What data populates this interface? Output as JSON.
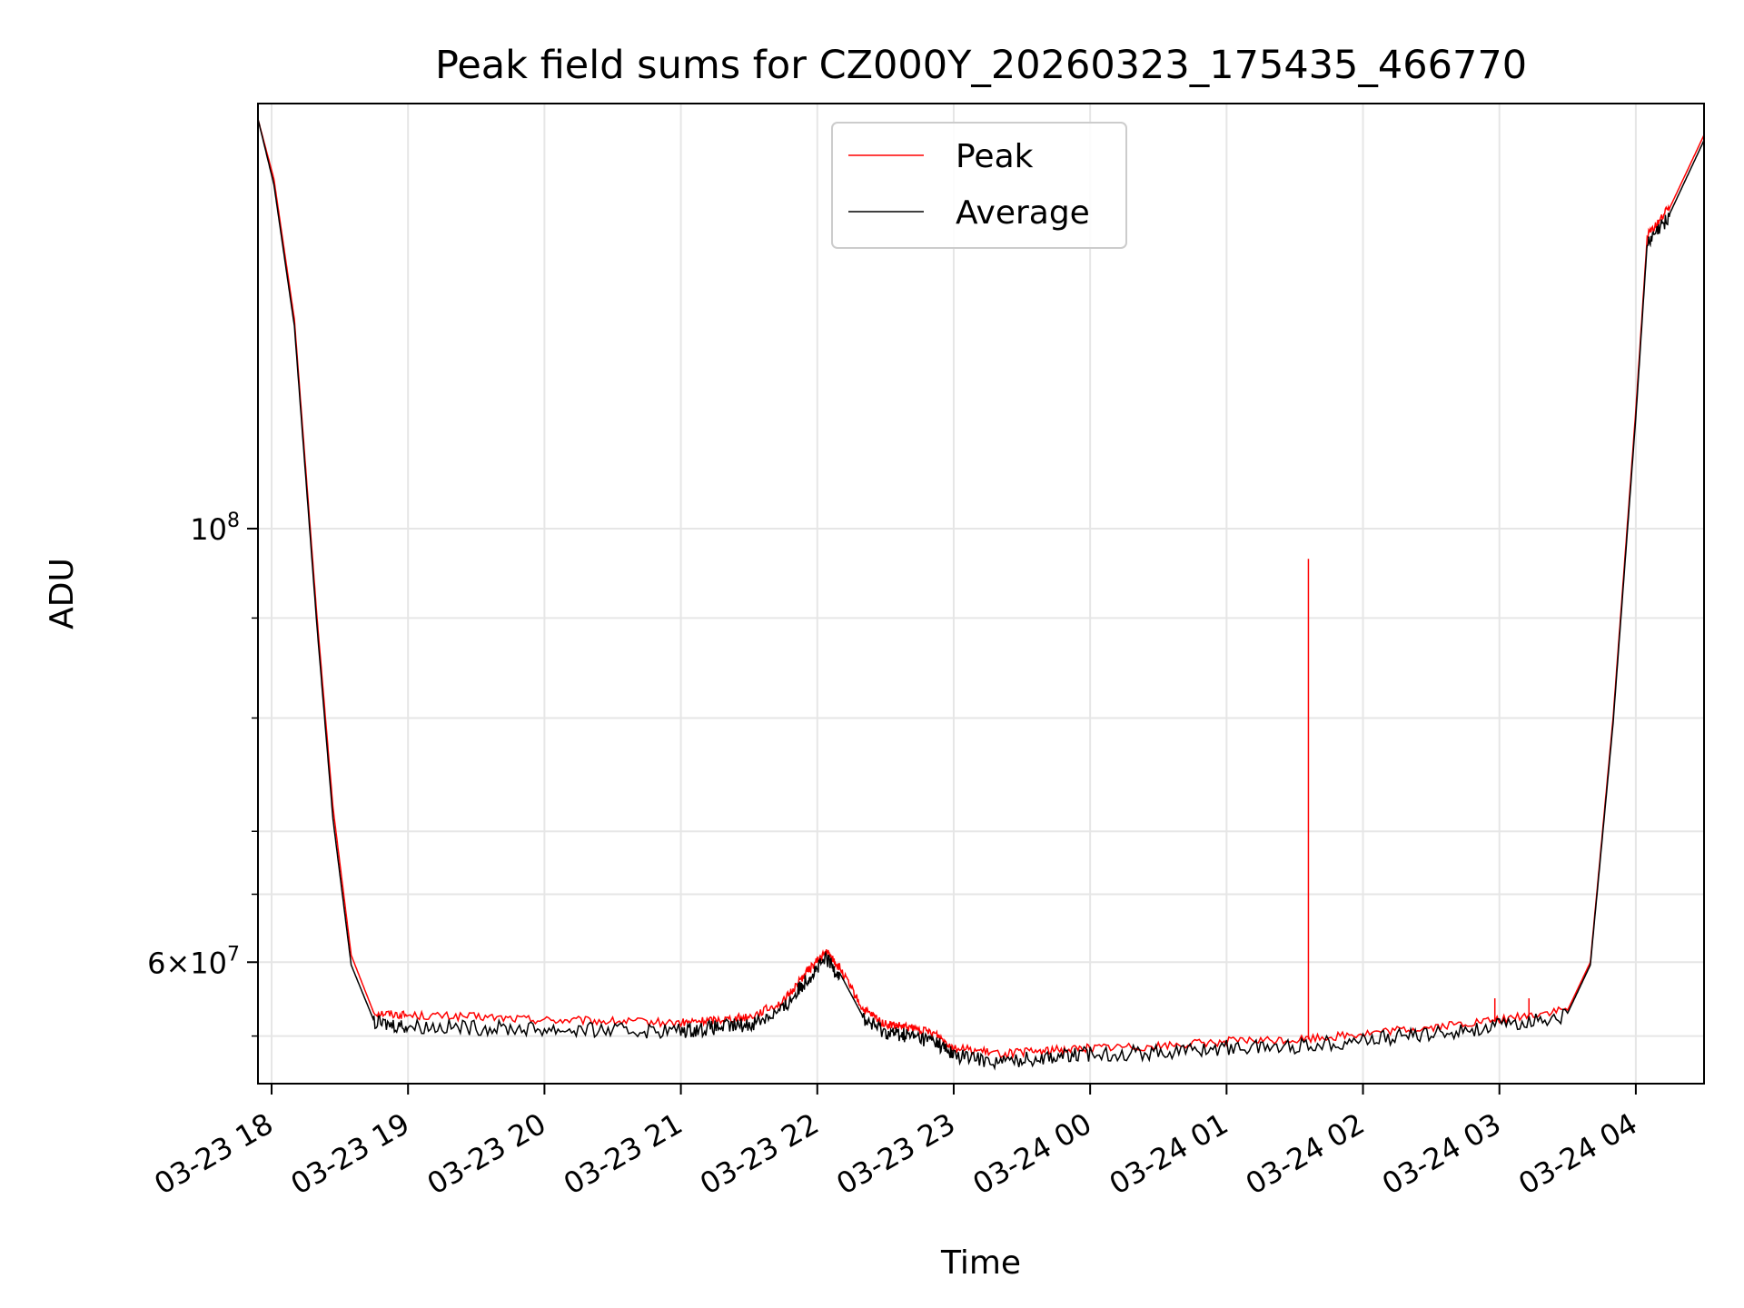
{
  "chart_data": {
    "type": "line",
    "title": "Peak field sums for CZ000Y_20260323_175435_466770",
    "xlabel": "Time",
    "ylabel": "ADU",
    "yscale": "log",
    "grid": true,
    "legend_position": "top-center",
    "x_range": [
      "2026-03-23 17:54",
      "2026-03-24 04:30"
    ],
    "y_range": [
      52000000,
      165000000
    ],
    "x_ticks": [
      {
        "t": "2026-03-23 18:00",
        "label": "03-23 18"
      },
      {
        "t": "2026-03-23 19:00",
        "label": "03-23 19"
      },
      {
        "t": "2026-03-23 20:00",
        "label": "03-23 20"
      },
      {
        "t": "2026-03-23 21:00",
        "label": "03-23 21"
      },
      {
        "t": "2026-03-23 22:00",
        "label": "03-23 22"
      },
      {
        "t": "2026-03-23 23:00",
        "label": "03-23 23"
      },
      {
        "t": "2026-03-24 00:00",
        "label": "03-24 00"
      },
      {
        "t": "2026-03-24 01:00",
        "label": "03-24 01"
      },
      {
        "t": "2026-03-24 02:00",
        "label": "03-24 02"
      },
      {
        "t": "2026-03-24 03:00",
        "label": "03-24 03"
      },
      {
        "t": "2026-03-24 04:00",
        "label": "03-24 04"
      }
    ],
    "y_major_ticks": [
      {
        "value": 60000000,
        "mantissa": "6",
        "exponent": "7"
      },
      {
        "value": 100000000,
        "mantissa": "",
        "exponent": "8"
      }
    ],
    "y_minor_ticks": [
      55000000,
      65000000,
      70000000,
      80000000,
      90000000
    ],
    "series": [
      {
        "name": "Peak",
        "color": "#ff0000",
        "points": [
          [
            "2026-03-23 17:54",
            162000000
          ],
          [
            "2026-03-23 18:01",
            151000000
          ],
          [
            "2026-03-23 18:10",
            128000000
          ],
          [
            "2026-03-23 18:20",
            90000000
          ],
          [
            "2026-03-23 18:27",
            72000000
          ],
          [
            "2026-03-23 18:35",
            60500000
          ],
          [
            "2026-03-23 18:45",
            56500000
          ],
          [
            "2026-03-23 19:00",
            56300000
          ],
          [
            "2026-03-23 19:30",
            56200000
          ],
          [
            "2026-03-23 20:00",
            56000000
          ],
          [
            "2026-03-23 20:30",
            55900000
          ],
          [
            "2026-03-23 21:00",
            55800000
          ],
          [
            "2026-03-23 21:15",
            56000000
          ],
          [
            "2026-03-23 21:30",
            56200000
          ],
          [
            "2026-03-23 21:45",
            57200000
          ],
          [
            "2026-03-23 21:55",
            59200000
          ],
          [
            "2026-03-23 22:04",
            60700000
          ],
          [
            "2026-03-23 22:10",
            59500000
          ],
          [
            "2026-03-23 22:20",
            56700000
          ],
          [
            "2026-03-23 22:30",
            55700000
          ],
          [
            "2026-03-23 22:40",
            55500000
          ],
          [
            "2026-03-23 22:52",
            55100000
          ],
          [
            "2026-03-23 23:00",
            54200000
          ],
          [
            "2026-03-23 23:20",
            53800000
          ],
          [
            "2026-03-23 23:40",
            54000000
          ],
          [
            "2026-03-24 00:00",
            54200000
          ],
          [
            "2026-03-24 00:30",
            54300000
          ],
          [
            "2026-03-24 01:00",
            54600000
          ],
          [
            "2026-03-24 01:30",
            54700000
          ],
          [
            "2026-03-24 02:00",
            55100000
          ],
          [
            "2026-03-24 02:30",
            55500000
          ],
          [
            "2026-03-24 03:00",
            56000000
          ],
          [
            "2026-03-24 03:30",
            56700000
          ],
          [
            "2026-03-24 03:40",
            60000000
          ],
          [
            "2026-03-24 03:50",
            80000000
          ],
          [
            "2026-03-24 04:00",
            115000000
          ],
          [
            "2026-03-24 04:05",
            141000000
          ],
          [
            "2026-03-24 04:15",
            146000000
          ],
          [
            "2026-03-24 04:30",
            159000000
          ]
        ],
        "spikes": [
          {
            "t": "2026-03-24 01:36",
            "value": 96500000
          },
          {
            "t": "2026-03-24 02:58",
            "value": 57500000
          },
          {
            "t": "2026-03-24 03:13",
            "value": 57500000
          }
        ]
      },
      {
        "name": "Average",
        "color": "#000000",
        "points": [
          [
            "2026-03-23 17:54",
            162000000
          ],
          [
            "2026-03-23 18:01",
            150000000
          ],
          [
            "2026-03-23 18:10",
            127000000
          ],
          [
            "2026-03-23 18:20",
            89000000
          ],
          [
            "2026-03-23 18:27",
            71000000
          ],
          [
            "2026-03-23 18:35",
            59800000
          ],
          [
            "2026-03-23 18:45",
            56000000
          ],
          [
            "2026-03-23 19:00",
            55800000
          ],
          [
            "2026-03-23 19:30",
            55700000
          ],
          [
            "2026-03-23 20:00",
            55600000
          ],
          [
            "2026-03-23 20:30",
            55500000
          ],
          [
            "2026-03-23 21:00",
            55500000
          ],
          [
            "2026-03-23 21:15",
            55700000
          ],
          [
            "2026-03-23 21:30",
            55900000
          ],
          [
            "2026-03-23 21:45",
            56900000
          ],
          [
            "2026-03-23 21:55",
            58900000
          ],
          [
            "2026-03-23 22:04",
            60400000
          ],
          [
            "2026-03-23 22:10",
            59200000
          ],
          [
            "2026-03-23 22:20",
            56300000
          ],
          [
            "2026-03-23 22:30",
            55400000
          ],
          [
            "2026-03-23 22:40",
            55200000
          ],
          [
            "2026-03-23 22:52",
            54800000
          ],
          [
            "2026-03-23 23:00",
            53900000
          ],
          [
            "2026-03-23 23:20",
            53500000
          ],
          [
            "2026-03-23 23:40",
            53800000
          ],
          [
            "2026-03-24 00:00",
            54000000
          ],
          [
            "2026-03-24 00:30",
            54100000
          ],
          [
            "2026-03-24 01:00",
            54400000
          ],
          [
            "2026-03-24 01:30",
            54500000
          ],
          [
            "2026-03-24 02:00",
            54900000
          ],
          [
            "2026-03-24 02:30",
            55300000
          ],
          [
            "2026-03-24 03:00",
            55800000
          ],
          [
            "2026-03-24 03:30",
            56500000
          ],
          [
            "2026-03-24 03:40",
            59800000
          ],
          [
            "2026-03-24 03:50",
            79500000
          ],
          [
            "2026-03-24 04:00",
            114000000
          ],
          [
            "2026-03-24 04:05",
            140000000
          ],
          [
            "2026-03-24 04:15",
            145000000
          ],
          [
            "2026-03-24 04:30",
            158000000
          ]
        ]
      }
    ]
  }
}
